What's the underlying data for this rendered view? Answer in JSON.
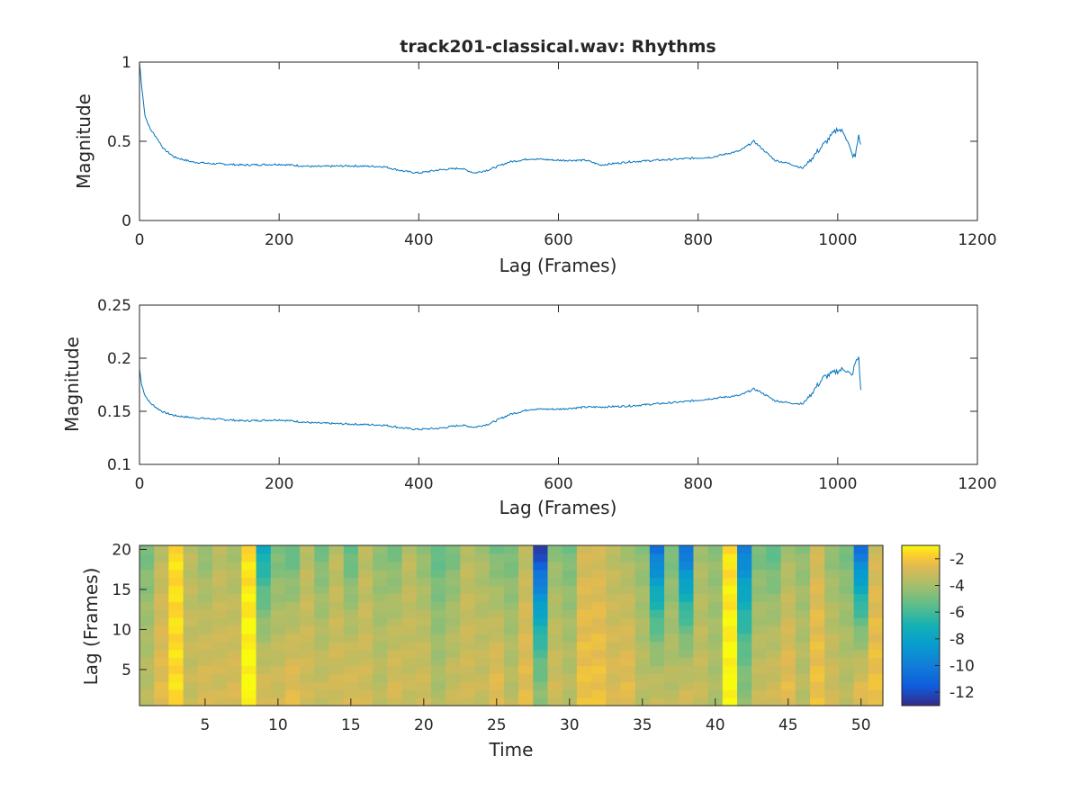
{
  "figure_title": "track201-classical.wav: Rhythms",
  "colors": {
    "line": "#0072bd",
    "axis": "#262626",
    "colormap": "parula"
  },
  "chart_data": [
    {
      "type": "line",
      "title": "track201-classical.wav: Rhythms",
      "xlabel": "Lag (Frames)",
      "ylabel": "Magnitude",
      "xlim": [
        0,
        1200
      ],
      "ylim": [
        0,
        1
      ],
      "xticks": [
        "0",
        "200",
        "400",
        "600",
        "800",
        "1000",
        "1200"
      ],
      "yticks": [
        "0",
        "0.5",
        "1"
      ],
      "grid": false,
      "series": [
        {
          "x": [
            0,
            3,
            8,
            15,
            25,
            35,
            50,
            75,
            100,
            150,
            200,
            250,
            300,
            350,
            380,
            400,
            430,
            460,
            480,
            500,
            530,
            560,
            600,
            640,
            660,
            700,
            740,
            780,
            820,
            860,
            880,
            890,
            910,
            930,
            950,
            960,
            980,
            1000,
            1010,
            1020,
            1025,
            1030,
            1033
          ],
          "y": [
            1.0,
            0.85,
            0.66,
            0.58,
            0.52,
            0.45,
            0.4,
            0.37,
            0.36,
            0.35,
            0.355,
            0.34,
            0.345,
            0.34,
            0.31,
            0.3,
            0.32,
            0.33,
            0.3,
            0.32,
            0.37,
            0.39,
            0.38,
            0.38,
            0.35,
            0.37,
            0.38,
            0.39,
            0.4,
            0.44,
            0.5,
            0.46,
            0.38,
            0.36,
            0.33,
            0.38,
            0.48,
            0.58,
            0.55,
            0.42,
            0.4,
            0.54,
            0.48
          ]
        }
      ]
    },
    {
      "type": "line",
      "title": "",
      "xlabel": "Lag (Frames)",
      "ylabel": "Magnitude",
      "xlim": [
        0,
        1200
      ],
      "ylim": [
        0.1,
        0.25
      ],
      "xticks": [
        "0",
        "200",
        "400",
        "600",
        "800",
        "1000",
        "1200"
      ],
      "yticks": [
        "0.1",
        "0.15",
        "0.2",
        "0.25"
      ],
      "grid": false,
      "series": [
        {
          "x": [
            0,
            3,
            8,
            15,
            25,
            35,
            50,
            75,
            100,
            150,
            200,
            250,
            300,
            350,
            380,
            400,
            430,
            460,
            480,
            500,
            530,
            560,
            600,
            640,
            660,
            700,
            740,
            780,
            820,
            860,
            880,
            890,
            910,
            930,
            950,
            960,
            980,
            1000,
            1010,
            1020,
            1025,
            1030,
            1033
          ],
          "y": [
            0.19,
            0.175,
            0.165,
            0.158,
            0.153,
            0.149,
            0.146,
            0.144,
            0.143,
            0.141,
            0.142,
            0.139,
            0.138,
            0.137,
            0.134,
            0.133,
            0.134,
            0.137,
            0.135,
            0.138,
            0.147,
            0.152,
            0.152,
            0.154,
            0.154,
            0.155,
            0.157,
            0.159,
            0.162,
            0.165,
            0.171,
            0.168,
            0.16,
            0.158,
            0.157,
            0.165,
            0.182,
            0.188,
            0.19,
            0.183,
            0.195,
            0.201,
            0.17
          ]
        }
      ]
    },
    {
      "type": "heatmap",
      "title": "",
      "xlabel": "Time",
      "ylabel": "Lag (Frames)",
      "xlim": [
        0.5,
        51.5
      ],
      "ylim": [
        0.5,
        20.5
      ],
      "xticks": [
        "5",
        "10",
        "15",
        "20",
        "25",
        "30",
        "35",
        "40",
        "45",
        "50"
      ],
      "yticks": [
        "5",
        "10",
        "15",
        "20"
      ],
      "colorbar": {
        "range": [
          -13,
          -1
        ],
        "ticks": [
          "-2",
          "-4",
          "-6",
          "-8",
          "-10",
          "-12"
        ]
      },
      "columns": 51,
      "rows": 20,
      "column_bottom_values": [
        -3.5,
        -2.5,
        -1.5,
        -3.2,
        -2.8,
        -3.0,
        -2.8,
        -1.0,
        -2.8,
        -3.0,
        -2.5,
        -3.0,
        -3.2,
        -3.0,
        -2.8,
        -3.0,
        -3.5,
        -2.8,
        -3.2,
        -3.0,
        -3.8,
        -3.2,
        -3.0,
        -3.2,
        -2.5,
        -3.5,
        -2.5,
        -4.5,
        -3.0,
        -3.5,
        -2.2,
        -2.2,
        -2.8,
        -2.5,
        -3.5,
        -3.2,
        -3.5,
        -3.0,
        -3.2,
        -3.8,
        -1.0,
        -4.5,
        -3.2,
        -3.0,
        -2.5,
        -3.5,
        -2.2,
        -3.0,
        -3.5,
        -2.5,
        -2.2
      ],
      "column_top_values": [
        -5.0,
        -3.5,
        -1.5,
        -3.5,
        -4.5,
        -3.5,
        -4.0,
        -1.5,
        -7.5,
        -5.0,
        -5.5,
        -3.5,
        -5.0,
        -3.5,
        -5.5,
        -3.5,
        -4.5,
        -5.0,
        -3.5,
        -4.5,
        -5.5,
        -5.0,
        -3.5,
        -4.0,
        -5.0,
        -5.0,
        -3.5,
        -12.5,
        -4.5,
        -5.0,
        -3.0,
        -3.0,
        -3.5,
        -4.0,
        -4.5,
        -10.5,
        -5.0,
        -10.5,
        -4.0,
        -4.5,
        -1.5,
        -10.0,
        -5.0,
        -5.5,
        -4.0,
        -4.5,
        -3.0,
        -4.5,
        -5.0,
        -10.5,
        -3.0
      ]
    }
  ]
}
